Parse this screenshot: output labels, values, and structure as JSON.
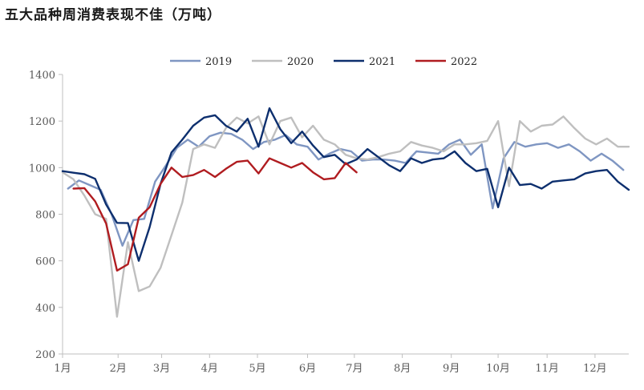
{
  "title": "五大品种周消费表现不佳（万吨）",
  "chart_data": {
    "type": "line",
    "title": "五大品种周消费表现不佳（万吨）",
    "xlabel": "",
    "ylabel": "",
    "ylim": [
      200,
      1400
    ],
    "yticks": [
      200,
      400,
      600,
      800,
      1000,
      1200,
      1400
    ],
    "x_range": [
      1,
      53
    ],
    "x_unit": "week",
    "month_ticks": [
      {
        "label": "1月",
        "week": 1
      },
      {
        "label": "2月",
        "week": 6.1
      },
      {
        "label": "3月",
        "week": 10.1
      },
      {
        "label": "4月",
        "week": 14.5
      },
      {
        "label": "5月",
        "week": 18.9
      },
      {
        "label": "6月",
        "week": 23.5
      },
      {
        "label": "7月",
        "week": 27.8
      },
      {
        "label": "8月",
        "week": 32.2
      },
      {
        "label": "9月",
        "week": 36.7
      },
      {
        "label": "10月",
        "week": 41.0
      },
      {
        "label": "11月",
        "week": 45.5
      },
      {
        "label": "12月",
        "week": 49.9
      }
    ],
    "legend_position": "top",
    "grid": false,
    "series": [
      {
        "name": "2019",
        "color": "#7f96c2",
        "values": [
          [
            1.5,
            910
          ],
          [
            2.5,
            945
          ],
          [
            3.5,
            925
          ],
          [
            4.5,
            905
          ],
          [
            5.5,
            800
          ],
          [
            6.5,
            665
          ],
          [
            7.5,
            775
          ],
          [
            8.5,
            780
          ],
          [
            9.5,
            940
          ],
          [
            10.5,
            1010
          ],
          [
            11.5,
            1085
          ],
          [
            12.5,
            1120
          ],
          [
            13.5,
            1090
          ],
          [
            14.5,
            1135
          ],
          [
            15.5,
            1150
          ],
          [
            16.5,
            1145
          ],
          [
            17.5,
            1120
          ],
          [
            18.5,
            1080
          ],
          [
            19.5,
            1110
          ],
          [
            20.5,
            1120
          ],
          [
            21.5,
            1140
          ],
          [
            22.5,
            1100
          ],
          [
            23.5,
            1090
          ],
          [
            24.5,
            1035
          ],
          [
            25.5,
            1060
          ],
          [
            26.5,
            1080
          ],
          [
            27.5,
            1070
          ],
          [
            28.5,
            1030
          ],
          [
            29.5,
            1035
          ],
          [
            30.5,
            1035
          ],
          [
            31.5,
            1030
          ],
          [
            32.5,
            1020
          ],
          [
            33.5,
            1070
          ],
          [
            34.5,
            1065
          ],
          [
            35.5,
            1060
          ],
          [
            36.5,
            1100
          ],
          [
            37.5,
            1120
          ],
          [
            38.5,
            1055
          ],
          [
            39.5,
            1100
          ],
          [
            40.5,
            825
          ],
          [
            41.5,
            1040
          ],
          [
            42.5,
            1110
          ],
          [
            43.5,
            1090
          ],
          [
            44.5,
            1100
          ],
          [
            45.5,
            1105
          ],
          [
            46.5,
            1085
          ],
          [
            47.5,
            1100
          ],
          [
            48.5,
            1070
          ],
          [
            49.5,
            1030
          ],
          [
            50.5,
            1060
          ],
          [
            51.5,
            1030
          ],
          [
            52.5,
            990
          ]
        ]
      },
      {
        "name": "2020",
        "color": "#bfbfbf",
        "values": [
          [
            1,
            980
          ],
          [
            2,
            950
          ],
          [
            3,
            880
          ],
          [
            4,
            800
          ],
          [
            5,
            780
          ],
          [
            6,
            360
          ],
          [
            7,
            680
          ],
          [
            8,
            470
          ],
          [
            9,
            490
          ],
          [
            10,
            570
          ],
          [
            11,
            710
          ],
          [
            12,
            850
          ],
          [
            13,
            1080
          ],
          [
            14,
            1100
          ],
          [
            15,
            1085
          ],
          [
            16,
            1170
          ],
          [
            17,
            1215
          ],
          [
            18,
            1190
          ],
          [
            19,
            1220
          ],
          [
            20,
            1100
          ],
          [
            21,
            1200
          ],
          [
            22,
            1215
          ],
          [
            23,
            1130
          ],
          [
            24,
            1180
          ],
          [
            25,
            1120
          ],
          [
            26,
            1100
          ],
          [
            27,
            1055
          ],
          [
            28,
            1040
          ],
          [
            29,
            1035
          ],
          [
            30,
            1045
          ],
          [
            31,
            1060
          ],
          [
            32,
            1070
          ],
          [
            33,
            1110
          ],
          [
            34,
            1095
          ],
          [
            35,
            1085
          ],
          [
            36,
            1070
          ],
          [
            37,
            1100
          ],
          [
            38,
            1100
          ],
          [
            39,
            1105
          ],
          [
            40,
            1115
          ],
          [
            41,
            1200
          ],
          [
            42,
            920
          ],
          [
            43,
            1200
          ],
          [
            44,
            1155
          ],
          [
            45,
            1180
          ],
          [
            46,
            1185
          ],
          [
            47,
            1220
          ],
          [
            48,
            1170
          ],
          [
            49,
            1125
          ],
          [
            50,
            1100
          ],
          [
            51,
            1125
          ],
          [
            52,
            1090
          ],
          [
            53,
            1090
          ]
        ]
      },
      {
        "name": "2021",
        "color": "#0d2f6e",
        "values": [
          [
            1,
            985
          ],
          [
            2,
            978
          ],
          [
            3,
            972
          ],
          [
            4,
            952
          ],
          [
            5,
            842
          ],
          [
            6,
            763
          ],
          [
            7,
            762
          ],
          [
            8,
            600
          ],
          [
            9,
            745
          ],
          [
            10,
            930
          ],
          [
            11,
            1065
          ],
          [
            12,
            1120
          ],
          [
            13,
            1180
          ],
          [
            14,
            1215
          ],
          [
            15,
            1225
          ],
          [
            16,
            1180
          ],
          [
            17,
            1155
          ],
          [
            18,
            1210
          ],
          [
            19,
            1090
          ],
          [
            20,
            1255
          ],
          [
            21,
            1165
          ],
          [
            22,
            1105
          ],
          [
            23,
            1155
          ],
          [
            24,
            1095
          ],
          [
            25,
            1045
          ],
          [
            26,
            1055
          ],
          [
            27,
            1015
          ],
          [
            28,
            1035
          ],
          [
            29,
            1080
          ],
          [
            30,
            1045
          ],
          [
            31,
            1010
          ],
          [
            32,
            985
          ],
          [
            33,
            1040
          ],
          [
            34,
            1020
          ],
          [
            35,
            1035
          ],
          [
            36,
            1040
          ],
          [
            37,
            1070
          ],
          [
            38,
            1020
          ],
          [
            39,
            985
          ],
          [
            40,
            995
          ],
          [
            41,
            830
          ],
          [
            42,
            1000
          ],
          [
            43,
            925
          ],
          [
            44,
            930
          ],
          [
            45,
            910
          ],
          [
            46,
            940
          ],
          [
            47,
            945
          ],
          [
            48,
            950
          ],
          [
            49,
            975
          ],
          [
            50,
            985
          ],
          [
            51,
            990
          ],
          [
            52,
            940
          ],
          [
            53,
            905
          ]
        ]
      },
      {
        "name": "2022",
        "color": "#b01c20",
        "values": [
          [
            2,
            910
          ],
          [
            3,
            912
          ],
          [
            4,
            855
          ],
          [
            5,
            760
          ],
          [
            6,
            558
          ],
          [
            7,
            585
          ],
          [
            8,
            785
          ],
          [
            9,
            830
          ],
          [
            10,
            930
          ],
          [
            11,
            1000
          ],
          [
            12,
            960
          ],
          [
            13,
            968
          ],
          [
            14,
            990
          ],
          [
            15,
            960
          ],
          [
            16,
            995
          ],
          [
            17,
            1025
          ],
          [
            18,
            1030
          ],
          [
            19,
            975
          ],
          [
            20,
            1040
          ],
          [
            21,
            1020
          ],
          [
            22,
            1000
          ],
          [
            23,
            1020
          ],
          [
            24,
            980
          ],
          [
            25,
            950
          ],
          [
            26,
            955
          ],
          [
            27,
            1020
          ],
          [
            28,
            980
          ]
        ]
      }
    ]
  }
}
